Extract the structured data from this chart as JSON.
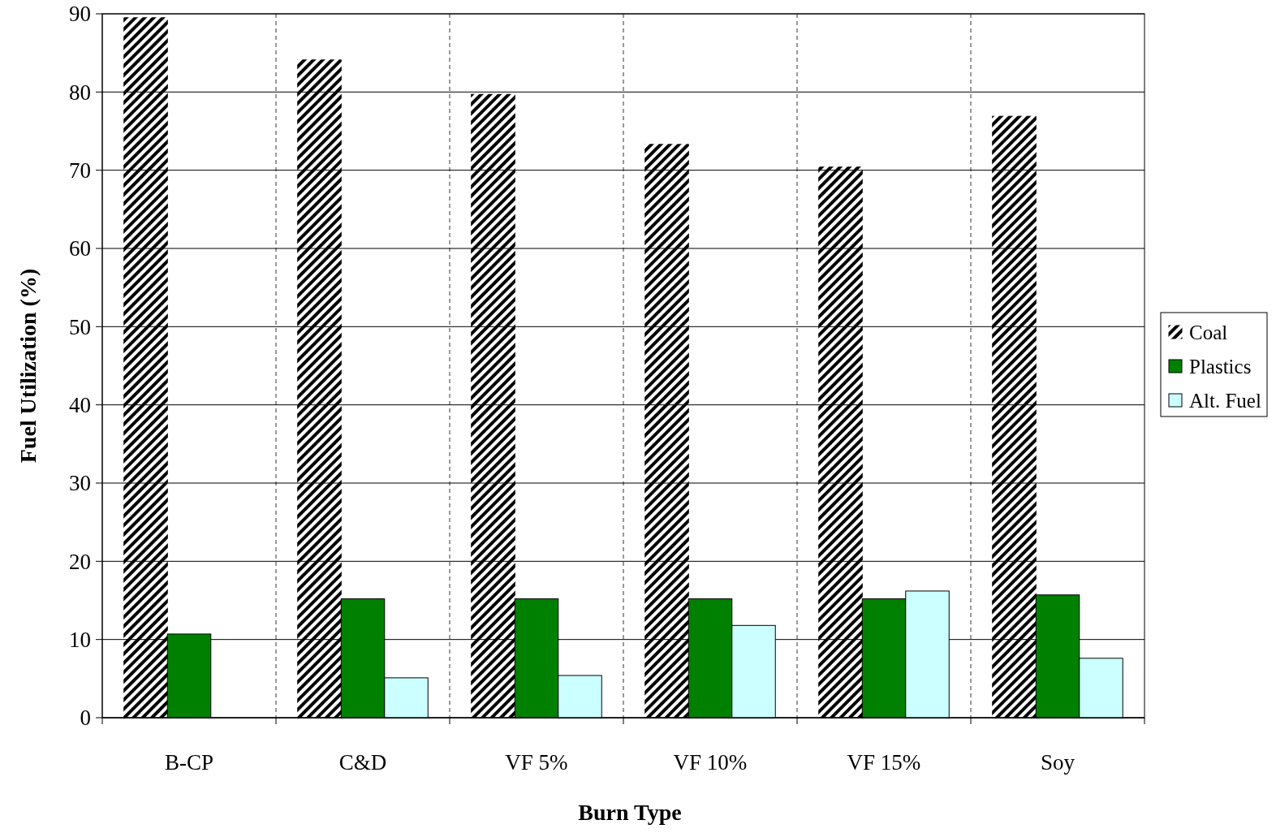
{
  "chart_data": {
    "type": "bar",
    "xlabel": "Burn Type",
    "ylabel": "Fuel Utilization (%)",
    "categories": [
      "B-CP",
      "C&D",
      "VF 5%",
      "VF 10%",
      "VF 15%",
      "Soy"
    ],
    "series": [
      {
        "name": "Coal",
        "color": "#000000",
        "values": [
          89.5,
          84.1,
          79.7,
          73.3,
          70.4,
          76.9
        ]
      },
      {
        "name": "Plastics",
        "color": "#008000",
        "values": [
          10.7,
          15.2,
          15.2,
          15.2,
          15.2,
          15.7
        ]
      },
      {
        "name": "Alt. Fuel",
        "color": "#ccffff",
        "values": [
          null,
          5.1,
          5.4,
          11.8,
          16.2,
          7.6
        ]
      }
    ],
    "ylim": [
      0,
      90
    ],
    "yticks": [
      0,
      10,
      20,
      30,
      40,
      50,
      60,
      70,
      80,
      90
    ],
    "grid": true,
    "legend": "right"
  }
}
